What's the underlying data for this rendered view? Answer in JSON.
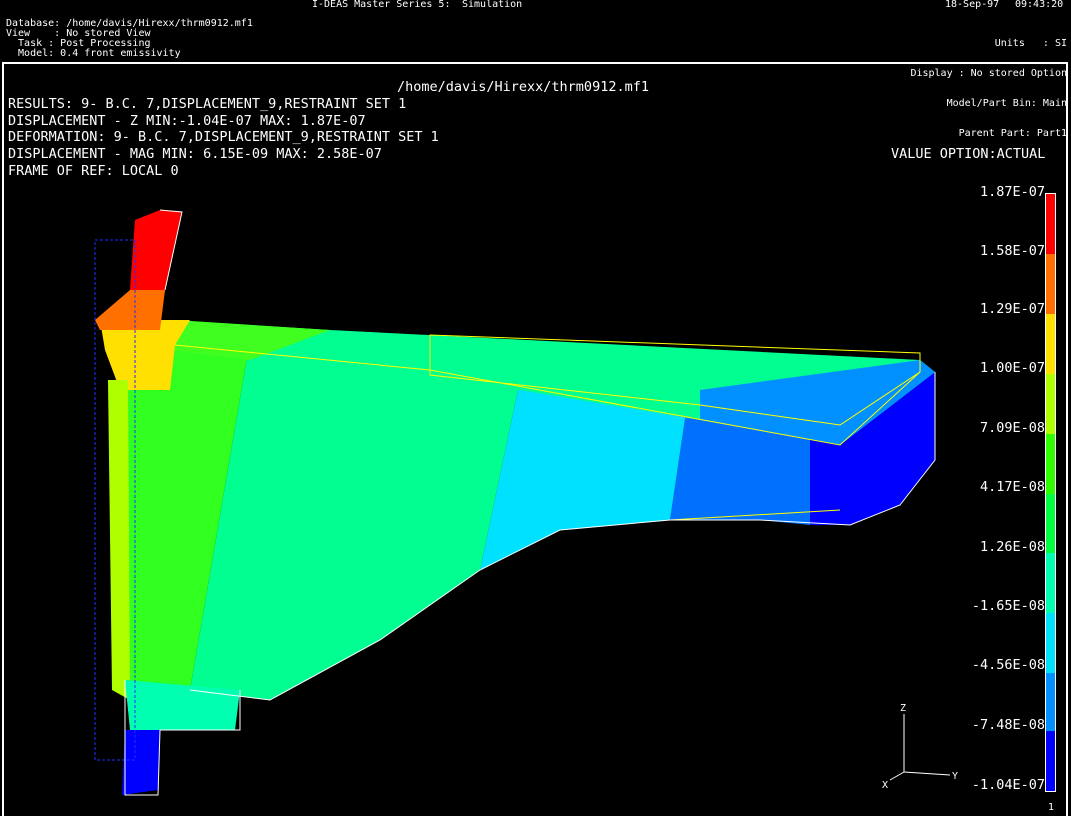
{
  "header": {
    "app_title": "I-DEAS Master Series 5:",
    "application": "Simulation",
    "date": "18-Sep-97",
    "time": "09:43:20",
    "left_lines": [
      "Database: /home/davis/Hirexx/thrm0912.mf1",
      "View    : No stored View",
      "  Task : Post Processing",
      "  Model: 0.4 front emissivity"
    ],
    "right_lines": [
      "Units   : SI",
      "Display : No stored Option",
      "Model/Part Bin: Main",
      "Parent Part: Part1"
    ]
  },
  "viewport": {
    "file_title": "/home/davis/Hirexx/thrm0912.mf1",
    "info_lines": [
      "RESULTS: 9- B.C. 7,DISPLACEMENT_9,RESTRAINT SET 1",
      "DISPLACEMENT - Z MIN:-1.04E-07 MAX: 1.87E-07",
      "DEFORMATION: 9- B.C. 7,DISPLACEMENT_9,RESTRAINT SET 1",
      "DISPLACEMENT - MAG MIN: 6.15E-09 MAX: 2.58E-07",
      "FRAME OF REF: LOCAL 0"
    ],
    "value_option": "VALUE OPTION:ACTUAL",
    "page_number": "1",
    "triad": {
      "x": "X",
      "y": "Y",
      "z": "Z"
    }
  },
  "legend": {
    "ticks": [
      "1.87E-07",
      "1.58E-07",
      "1.29E-07",
      "1.00E-07",
      "7.09E-08",
      "4.17E-08",
      "1.26E-08",
      "-1.65E-08",
      "-4.56E-08",
      "-7.48E-08",
      "-1.04E-07"
    ],
    "colors": [
      "#ff0000",
      "#ff7000",
      "#ffe000",
      "#b0ff00",
      "#30ff00",
      "#00ff40",
      "#00ffb0",
      "#00e0ff",
      "#0090ff",
      "#0060ff",
      "#0000ff"
    ]
  }
}
